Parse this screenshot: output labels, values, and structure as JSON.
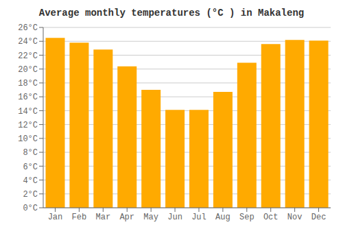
{
  "chart_data": {
    "type": "bar",
    "title": "Average monthly temperatures (°C ) in Makaleng",
    "categories": [
      "Jan",
      "Feb",
      "Mar",
      "Apr",
      "May",
      "Jun",
      "Jul",
      "Aug",
      "Sep",
      "Oct",
      "Nov",
      "Dec"
    ],
    "values": [
      24.5,
      23.8,
      22.8,
      20.4,
      17.0,
      14.1,
      14.1,
      16.7,
      20.9,
      23.6,
      24.2,
      24.1
    ],
    "color": "#FFAA00",
    "ylim": [
      0,
      26
    ],
    "yticks": [
      {
        "value": 0,
        "label": "0°C"
      },
      {
        "value": 2,
        "label": "2°C"
      },
      {
        "value": 4,
        "label": "4°C"
      },
      {
        "value": 6,
        "label": "6°C"
      },
      {
        "value": 8,
        "label": "8°C"
      },
      {
        "value": 10,
        "label": "10°C"
      },
      {
        "value": 12,
        "label": "12°C"
      },
      {
        "value": 14,
        "label": "14°C"
      },
      {
        "value": 16,
        "label": "16°C"
      },
      {
        "value": 18,
        "label": "18°C"
      },
      {
        "value": 20,
        "label": "20°C"
      },
      {
        "value": 22,
        "label": "22°C"
      },
      {
        "value": 24,
        "label": "24°C"
      },
      {
        "value": 26,
        "label": "26°C"
      }
    ],
    "grid": true
  }
}
